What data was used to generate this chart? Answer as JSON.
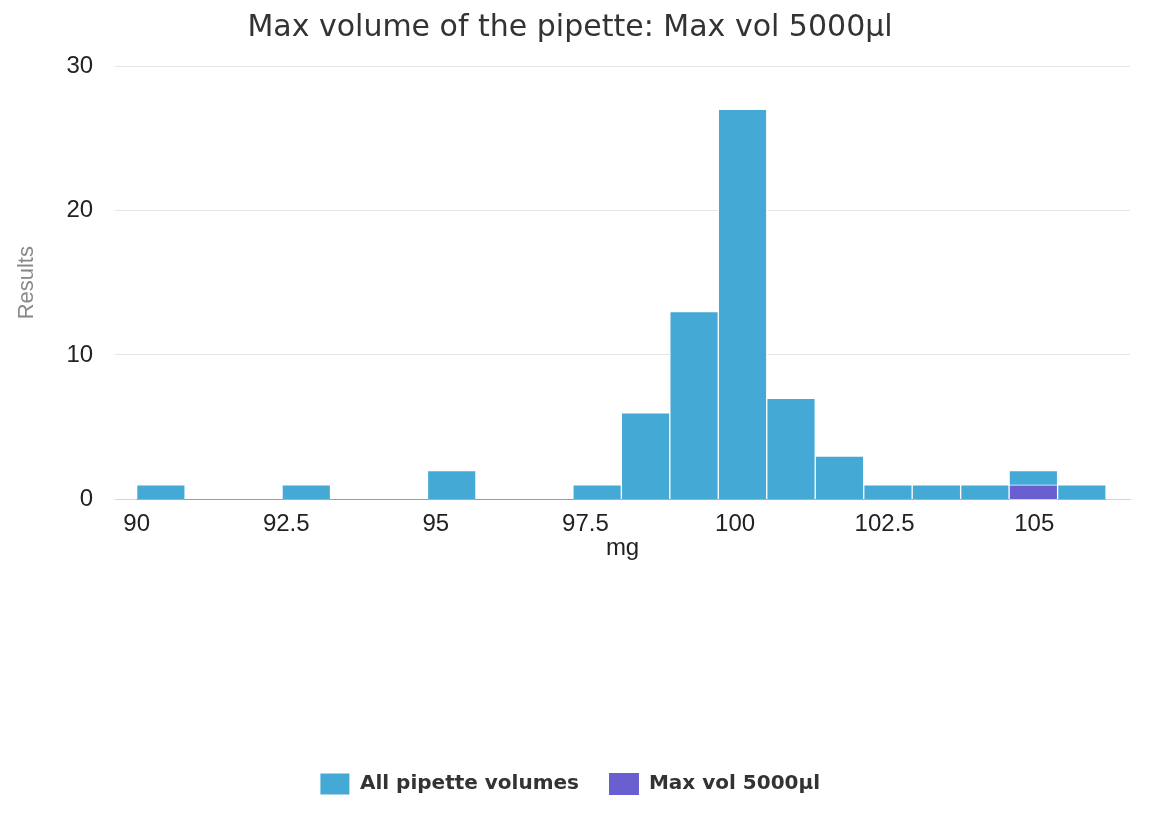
{
  "chart_data": {
    "type": "histogram",
    "title": "Max volume of the pipette: Max vol 5000µl",
    "xlabel": "mg",
    "ylabel": "Results",
    "bins": [
      90,
      90.81,
      91.62,
      92.43,
      93.24,
      94.05,
      94.86,
      95.67,
      96.48,
      97.29,
      98.1,
      98.91,
      99.72,
      100.53,
      101.34,
      102.15,
      102.96,
      103.77,
      104.58,
      105.39,
      106.2
    ],
    "series": [
      {
        "name": "All pipette volumes",
        "color": "#45a9d6",
        "values": [
          1,
          0,
          0,
          1,
          0,
          0,
          2,
          0,
          0,
          1,
          6,
          13,
          27,
          7,
          3,
          1,
          1,
          1,
          2,
          1
        ]
      },
      {
        "name": "Max vol 5000µl",
        "color": "#6a5fd0",
        "values": [
          0,
          0,
          0,
          0,
          0,
          0,
          0,
          0,
          0,
          0,
          0,
          0,
          0,
          0,
          0,
          0,
          0,
          0,
          1,
          0
        ]
      }
    ],
    "xlim": [
      89.64,
      106.6
    ],
    "xticks": [
      90,
      92.5,
      95,
      97.5,
      100,
      102.5,
      105
    ],
    "ylim": [
      0,
      30
    ],
    "yticks": [
      0,
      10,
      20,
      30
    ],
    "grid": "y",
    "legend": "bottom"
  }
}
